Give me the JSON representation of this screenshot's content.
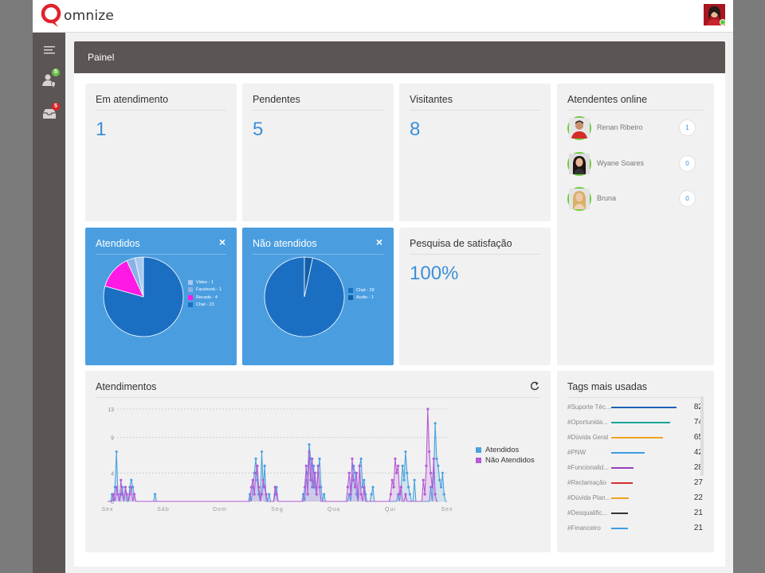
{
  "brand": {
    "name": "omnize",
    "accent": "#e0232c"
  },
  "header": {
    "title": "Painel"
  },
  "sidebar": {
    "items": [
      {
        "icon": "menu-icon"
      },
      {
        "icon": "user-location-icon",
        "badge": "5",
        "badge_color": "#6cc04a"
      },
      {
        "icon": "inbox-icon",
        "badge": "5",
        "badge_color": "#e0232c"
      }
    ]
  },
  "stats": {
    "em_atendimento": {
      "label": "Em atendimento",
      "value": "1"
    },
    "pendentes": {
      "label": "Pendentes",
      "value": "5"
    },
    "visitantes": {
      "label": "Visitantes",
      "value": "8"
    },
    "satisfacao": {
      "label": "Pesquisa de satisfação",
      "value": "100%"
    }
  },
  "online_agents": {
    "title": "Atendentes online",
    "agents": [
      {
        "name": "Renan Ribeiro",
        "count": "1"
      },
      {
        "name": "Wyane Soares",
        "count": "0"
      },
      {
        "name": "Bruna",
        "count": "0"
      }
    ]
  },
  "atendidos": {
    "title": "Atendidos",
    "close": "×",
    "legend": [
      "Video - 1",
      "Facebook - 1",
      "Recado - 4",
      "Chat - 23"
    ]
  },
  "nao_atendidos": {
    "title": "Não atendidos",
    "close": "×",
    "legend": [
      "Chat - 29",
      "Audio - 1"
    ]
  },
  "atendimentos": {
    "title": "Atendimentos",
    "refresh_icon": "refresh-icon",
    "legend": [
      "Atendidos",
      "Não Atendidos"
    ]
  },
  "tags": {
    "title": "Tags mais usadas",
    "items": [
      {
        "name": "#Suporte Téc...",
        "value": "82",
        "color": "#1f63b5"
      },
      {
        "name": "#Oportunida...",
        "value": "74",
        "color": "#1aa39a"
      },
      {
        "name": "#Dúvida Geral",
        "value": "65",
        "color": "#f0a422"
      },
      {
        "name": "#PNW",
        "value": "42",
        "color": "#3d9ee0"
      },
      {
        "name": "#Funcionalid...",
        "value": "28",
        "color": "#9b3fb5"
      },
      {
        "name": "#Reclamação",
        "value": "27",
        "color": "#d32f2f"
      },
      {
        "name": "#Dúvida Plan...",
        "value": "22",
        "color": "#f0a422"
      },
      {
        "name": "#Desqualific...",
        "value": "21",
        "color": "#333333"
      },
      {
        "name": "#Financeiro",
        "value": "21",
        "color": "#3d9ee0"
      }
    ]
  },
  "chart_data": [
    {
      "type": "pie",
      "title": "Atendidos",
      "categories": [
        "Video",
        "Facebook",
        "Recado",
        "Chat"
      ],
      "values": [
        1,
        1,
        4,
        23
      ],
      "colors": [
        "#a6c8f0",
        "#8cb0e8",
        "#ff19e6",
        "#1b6fc2"
      ],
      "legend": "right"
    },
    {
      "type": "pie",
      "title": "Não atendidos",
      "categories": [
        "Chat",
        "Audio"
      ],
      "values": [
        29,
        1
      ],
      "colors": [
        "#1b6fc2",
        "#1360a8"
      ],
      "legend": "right"
    },
    {
      "type": "line",
      "title": "Atendimentos",
      "x_ticks": [
        "Sex",
        "Sáb",
        "Dom",
        "Seg",
        "Qua",
        "Qui",
        "Sex"
      ],
      "y_ticks": [
        0,
        4,
        9,
        13
      ],
      "ylim": [
        0,
        13
      ],
      "grid": true,
      "legend": "right",
      "series": [
        {
          "name": "Atendidos",
          "color": "#4aa3df",
          "values": [
            0,
            0,
            0,
            1,
            0,
            2,
            7,
            1,
            0,
            1,
            2,
            0,
            2,
            0,
            0,
            2,
            3,
            2,
            1,
            0,
            0,
            0,
            0,
            0,
            0,
            0,
            0,
            0,
            0,
            0,
            0,
            0,
            1,
            0,
            0,
            0,
            0,
            0,
            0,
            0,
            0,
            0,
            0,
            0,
            0,
            0,
            0,
            0,
            0,
            0,
            0,
            0,
            0,
            0,
            0,
            0,
            0,
            0,
            0,
            0,
            0,
            0,
            0,
            0,
            0,
            0,
            0,
            0,
            0,
            0,
            0,
            0,
            0,
            0,
            0,
            0,
            0,
            0,
            0,
            0,
            0,
            0,
            0,
            0,
            0,
            0,
            0,
            0,
            0,
            0,
            0,
            0,
            0,
            0,
            0,
            0,
            1,
            0,
            2,
            4,
            6,
            3,
            1,
            0,
            7,
            2,
            5,
            0,
            0,
            1,
            0,
            0,
            0,
            1,
            2,
            0,
            0,
            0,
            0,
            0,
            0,
            0,
            0,
            0,
            0,
            0,
            0,
            0,
            0,
            0,
            0,
            0,
            1,
            0,
            3,
            4,
            8,
            6,
            2,
            5,
            2,
            1,
            4,
            6,
            2,
            0,
            1,
            0,
            0,
            0,
            0,
            0,
            0,
            0,
            0,
            0,
            0,
            0,
            0,
            0,
            0,
            0,
            0,
            1,
            0,
            3,
            5,
            4,
            1,
            0,
            5,
            6,
            2,
            3,
            1,
            0,
            0,
            0,
            1,
            2,
            0,
            0,
            0,
            0,
            0,
            0,
            0,
            0,
            0,
            0,
            0,
            0,
            0,
            0,
            0,
            0,
            1,
            0,
            2,
            5,
            3,
            7,
            4,
            2,
            1,
            0,
            0,
            3,
            0,
            0,
            0,
            0,
            0,
            0,
            0,
            0,
            0,
            0,
            2,
            0,
            4,
            11,
            6,
            5,
            3,
            2,
            4,
            1,
            0,
            0
          ]
        },
        {
          "name": "Não Atendidos",
          "color": "#b65ad6",
          "values": [
            0,
            0,
            0,
            0,
            1,
            0,
            2,
            1,
            0,
            3,
            1,
            0,
            2,
            1,
            0,
            1,
            2,
            0,
            1,
            0,
            0,
            0,
            0,
            0,
            0,
            0,
            0,
            0,
            0,
            0,
            0,
            0,
            0,
            0,
            0,
            0,
            0,
            0,
            0,
            0,
            0,
            0,
            0,
            0,
            0,
            0,
            0,
            0,
            0,
            0,
            0,
            0,
            0,
            0,
            0,
            0,
            0,
            0,
            0,
            0,
            0,
            0,
            0,
            0,
            0,
            0,
            0,
            0,
            0,
            0,
            0,
            0,
            0,
            0,
            0,
            0,
            0,
            0,
            0,
            0,
            0,
            0,
            0,
            0,
            0,
            0,
            0,
            0,
            0,
            0,
            0,
            0,
            0,
            0,
            0,
            0,
            0,
            2,
            3,
            1,
            4,
            5,
            2,
            0,
            1,
            3,
            2,
            1,
            0,
            0,
            0,
            0,
            0,
            2,
            1,
            0,
            0,
            0,
            0,
            0,
            0,
            0,
            0,
            0,
            0,
            0,
            0,
            0,
            0,
            0,
            0,
            0,
            0,
            2,
            5,
            1,
            7,
            3,
            6,
            2,
            4,
            1,
            5,
            2,
            0,
            0,
            0,
            0,
            0,
            0,
            0,
            0,
            0,
            0,
            0,
            0,
            0,
            0,
            0,
            0,
            0,
            0,
            2,
            4,
            1,
            6,
            3,
            2,
            4,
            0,
            5,
            1,
            0,
            2,
            0,
            0,
            0,
            0,
            0,
            0,
            0,
            0,
            0,
            0,
            0,
            0,
            0,
            0,
            0,
            0,
            0,
            1,
            3,
            2,
            6,
            4,
            5,
            1,
            2,
            0,
            0,
            1,
            0,
            0,
            0,
            0,
            0,
            0,
            0,
            0,
            0,
            0,
            0,
            3,
            1,
            5,
            13,
            7,
            4,
            2,
            6,
            1,
            0,
            0
          ]
        }
      ]
    }
  ]
}
